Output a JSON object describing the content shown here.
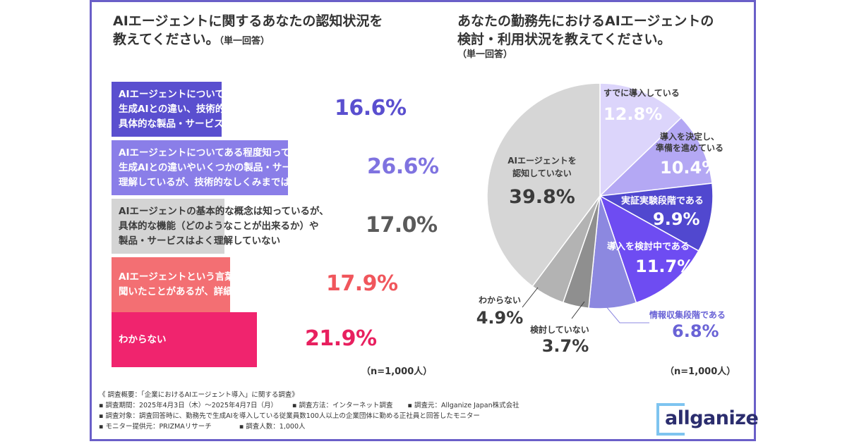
{
  "left": {
    "title_line1": "AIエージェントに関するあなたの認知状況を",
    "title_line2": "教えてください。",
    "title_sub": "（単一回答）",
    "n_note": "（n=1,000人）",
    "bars": [
      {
        "text": "AIエージェントについて詳しく知っており、\n生成AIとの違い、技術的なしくみ、\n具体的な製品・サービスも理解している",
        "value": 16.6,
        "pct_label": "16.6%",
        "color": "#5a4fcf",
        "pct_color": "#5a4fcf",
        "text_color": "#ffffff"
      },
      {
        "text": "AIエージェントについてある程度知っており、\n生成AIとの違いやいくつかの製品・サービスは\n理解しているが、技術的なしくみまでは詳しくない",
        "value": 26.6,
        "pct_label": "26.6%",
        "color": "#8a7ee8",
        "pct_color": "#7f73e0",
        "text_color": "#ffffff"
      },
      {
        "text": "AIエージェントの基本的な概念は知っているが、\n具体的な機能（どのようなことが出来るか）や\n製品・サービスはよく理解していない",
        "value": 17.0,
        "pct_label": "17.0%",
        "color": "#d4d4d4",
        "pct_color": "#5a5a5a",
        "text_color": "#3b3b3b"
      },
      {
        "text": "AIエージェントという言葉は\n聞いたことがあるが、詳細はわからない",
        "value": 17.9,
        "pct_label": "17.9%",
        "color": "#f36f73",
        "pct_color": "#f0565c",
        "text_color": "#ffffff"
      },
      {
        "text": "わからない",
        "value": 21.9,
        "pct_label": "21.9%",
        "color": "#f0246e",
        "pct_color": "#e8205f",
        "text_color": "#ffffff"
      }
    ]
  },
  "right": {
    "title_line1": "あなたの勤務先におけるAIエージェントの",
    "title_line2": "検討・利用状況を教えてください。",
    "title_sub": "（単一回答）",
    "n_note": "（n=1,000人）"
  },
  "chart_data": [
    {
      "type": "bar",
      "orientation": "horizontal",
      "title": "AIエージェントに関するあなたの認知状況を教えてください。（単一回答）",
      "categories": [
        "AIエージェントについて詳しく知っており、生成AIとの違い、技術的なしくみ、具体的な製品・サービスも理解している",
        "AIエージェントについてある程度知っており、生成AIとの違いやいくつかの製品・サービスは理解しているが、技術的なしくみまでは詳しくない",
        "AIエージェントの基本的な概念は知っているが、具体的な機能（どのようなことが出来るか）や製品・サービスはよく理解していない",
        "AIエージェントという言葉は聞いたことがあるが、詳細はわからない",
        "わからない"
      ],
      "values": [
        16.6,
        26.6,
        17.0,
        17.9,
        21.9
      ],
      "note": "（n=1,000人）"
    },
    {
      "type": "pie",
      "title": "あなたの勤務先におけるAIエージェントの検討・利用状況を教えてください。（単一回答）",
      "slices": [
        {
          "label": "すでに導入している",
          "value": 12.8,
          "color": "#dcd5fb",
          "label_color": "#3b3b3b",
          "pct_color": "#ffffff"
        },
        {
          "label": "導入を決定し、準備を進めている",
          "value": 10.4,
          "color": "#b4a8f4",
          "label_color": "#3b3b3b",
          "pct_color": "#ffffff"
        },
        {
          "label": "実証実験段階である",
          "value": 9.9,
          "color": "#5148cf",
          "label_color": "#ffffff",
          "pct_color": "#ffffff"
        },
        {
          "label": "導入を検討中である",
          "value": 11.7,
          "color": "#6e4cf2",
          "label_color": "#ffffff",
          "pct_color": "#ffffff"
        },
        {
          "label": "情報収集段階である",
          "value": 6.8,
          "color": "#8c88e0",
          "label_color": "#6a63d6",
          "pct_color": "#6a63d6"
        },
        {
          "label": "検討していない",
          "value": 3.7,
          "color": "#8f8f8f",
          "label_color": "#3b3b3b",
          "pct_color": "#3b3b3b"
        },
        {
          "label": "わからない",
          "value": 4.9,
          "color": "#b3b3b3",
          "label_color": "#3b3b3b",
          "pct_color": "#3b3b3b"
        },
        {
          "label": "AIエージェントを認知していない",
          "value": 39.8,
          "color": "#d6d6d6",
          "label_color": "#3b3b3b",
          "pct_color": "#3b3b3b"
        }
      ],
      "note": "（n=1,000人）"
    }
  ],
  "footer": {
    "line1": "《 調査概要：「企業におけるAIエージェント導入」に関する調査》",
    "line2a": "▪ 調査期間：2025年4月3日（木）〜2025年4月7日（月）",
    "line2b": "▪ 調査方法：インターネット調査",
    "line2c": "▪ 調査元：Allganize Japan株式会社",
    "line3": "▪ 調査対象：調査回答時に、勤務先で生成AIを導入している従業員数100人以上の企業団体に勤める正社員と回答したモニター",
    "line4a": "▪ モニター提供元：PRIZMAリサーチ",
    "line4b": "▪ 調査人数：1,000人"
  },
  "logo": {
    "text": "allganize",
    "color": "#2b2d6e",
    "accent": "#7ec4f0"
  }
}
